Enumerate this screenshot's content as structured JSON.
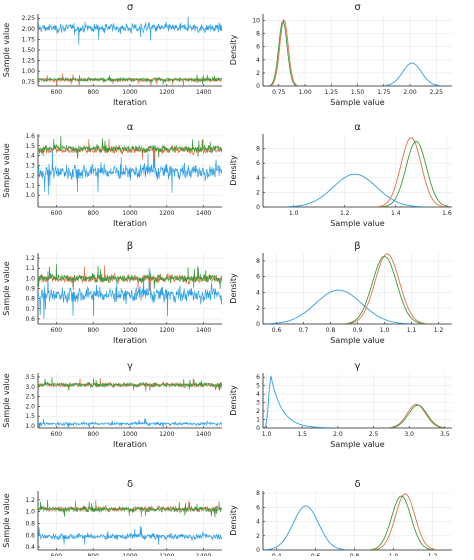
{
  "colors": {
    "chain1": "#2f9fe5",
    "chain2": "#e0704a",
    "chain3": "#3a9a3a",
    "grid": "#e8e8e8",
    "axis": "#222222"
  },
  "chart_data": [
    {
      "type": "line",
      "panel": "trace",
      "title": "σ",
      "xlabel": "Iteration",
      "ylabel": "Sample value",
      "xlim": [
        500,
        1500
      ],
      "ylim": [
        0.65,
        2.35
      ],
      "xticks": [
        600,
        800,
        1000,
        1200,
        1400
      ],
      "yticks": [
        0.75,
        1.0,
        1.25,
        1.5,
        1.75,
        2.0,
        2.25
      ],
      "ytick_labels": [
        "0.75",
        "1.00",
        "1.25",
        "1.50",
        "1.75",
        "2.00",
        "2.25"
      ],
      "series": [
        {
          "center": 2.02,
          "spread": 0.12
        },
        {
          "center": 0.8,
          "spread": 0.05
        },
        {
          "center": 0.8,
          "spread": 0.05
        }
      ]
    },
    {
      "type": "area",
      "panel": "density",
      "title": "σ",
      "xlabel": "Sample value",
      "ylabel": "Density",
      "xlim": [
        0.6,
        2.4
      ],
      "ylim": [
        0,
        11
      ],
      "xticks": [
        0.75,
        1.0,
        1.25,
        1.5,
        1.75,
        2.0,
        2.25
      ],
      "xtick_labels": [
        "0.75",
        "1.00",
        "1.25",
        "1.50",
        "1.75",
        "2.00",
        "2.25"
      ],
      "yticks": [
        0,
        2,
        4,
        6,
        8,
        10
      ],
      "series": [
        {
          "center": 2.02,
          "spread": 0.09,
          "peak": 3.5
        },
        {
          "center": 0.8,
          "spread": 0.04,
          "peak": 10.2
        },
        {
          "center": 0.79,
          "spread": 0.04,
          "peak": 10.0
        }
      ]
    },
    {
      "type": "line",
      "panel": "trace",
      "title": "α",
      "xlabel": "Iteration",
      "ylabel": "Sample value",
      "xlim": [
        500,
        1500
      ],
      "ylim": [
        0.88,
        1.62
      ],
      "xticks": [
        600,
        800,
        1000,
        1200,
        1400
      ],
      "yticks": [
        1.0,
        1.1,
        1.2,
        1.3,
        1.4,
        1.5,
        1.6
      ],
      "ytick_labels": [
        "1.0",
        "1.1",
        "1.2",
        "1.3",
        "1.4",
        "1.5",
        "1.6"
      ],
      "series": [
        {
          "center": 1.24,
          "spread": 0.09
        },
        {
          "center": 1.46,
          "spread": 0.04
        },
        {
          "center": 1.47,
          "spread": 0.04
        }
      ]
    },
    {
      "type": "area",
      "panel": "density",
      "title": "α",
      "xlabel": "Sample value",
      "ylabel": "Density",
      "xlim": [
        0.88,
        1.62
      ],
      "ylim": [
        0,
        10
      ],
      "xticks": [
        1.0,
        1.2,
        1.4,
        1.6
      ],
      "xtick_labels": [
        "1.0",
        "1.2",
        "1.4",
        "1.6"
      ],
      "yticks": [
        0,
        2,
        4,
        6,
        8
      ],
      "series": [
        {
          "center": 1.24,
          "spread": 0.085,
          "peak": 4.5
        },
        {
          "center": 1.46,
          "spread": 0.04,
          "peak": 9.5
        },
        {
          "center": 1.48,
          "spread": 0.04,
          "peak": 9.0
        }
      ]
    },
    {
      "type": "line",
      "panel": "trace",
      "title": "β",
      "xlabel": "Iteration",
      "ylabel": "Sample value",
      "xlim": [
        500,
        1500
      ],
      "ylim": [
        0.55,
        1.25
      ],
      "xticks": [
        600,
        800,
        1000,
        1200,
        1400
      ],
      "yticks": [
        0.6,
        0.7,
        0.8,
        0.9,
        1.0,
        1.1,
        1.2
      ],
      "ytick_labels": [
        "0.6",
        "0.7",
        "0.8",
        "0.9",
        "1.0",
        "1.1",
        "1.2"
      ],
      "series": [
        {
          "center": 0.84,
          "spread": 0.09
        },
        {
          "center": 1.0,
          "spread": 0.045
        },
        {
          "center": 1.0,
          "spread": 0.045
        }
      ]
    },
    {
      "type": "area",
      "panel": "density",
      "title": "β",
      "xlabel": "Sample value",
      "ylabel": "Density",
      "xlim": [
        0.55,
        1.25
      ],
      "ylim": [
        0,
        9
      ],
      "xticks": [
        0.6,
        0.7,
        0.8,
        0.9,
        1.0,
        1.1,
        1.2
      ],
      "xtick_labels": [
        "0.6",
        "0.7",
        "0.8",
        "0.9",
        "1.0",
        "1.1",
        "1.2"
      ],
      "yticks": [
        0,
        2,
        4,
        6,
        8
      ],
      "series": [
        {
          "center": 0.83,
          "spread": 0.085,
          "peak": 4.3
        },
        {
          "center": 1.01,
          "spread": 0.045,
          "peak": 8.9
        },
        {
          "center": 1.0,
          "spread": 0.045,
          "peak": 8.6
        }
      ]
    },
    {
      "type": "line",
      "panel": "trace",
      "title": "γ",
      "xlabel": "Iteration",
      "ylabel": "Sample value",
      "xlim": [
        500,
        1500
      ],
      "ylim": [
        0.9,
        3.7
      ],
      "xticks": [
        600,
        800,
        1000,
        1200,
        1400
      ],
      "yticks": [
        1.0,
        1.5,
        2.0,
        2.5,
        3.0,
        3.5
      ],
      "ytick_labels": [
        "1.0",
        "1.5",
        "2.0",
        "2.5",
        "3.0",
        "3.5"
      ],
      "series": [
        {
          "center": 1.12,
          "spread": 0.09
        },
        {
          "center": 3.1,
          "spread": 0.12
        },
        {
          "center": 3.1,
          "spread": 0.12
        }
      ]
    },
    {
      "type": "area",
      "panel": "density",
      "title": "γ",
      "xlabel": "Sample value",
      "ylabel": "Density",
      "xlim": [
        0.95,
        3.6
      ],
      "ylim": [
        0,
        6.5
      ],
      "xticks": [
        1.0,
        1.5,
        2.0,
        2.5,
        3.0,
        3.5
      ],
      "xtick_labels": [
        "1.0",
        "1.5",
        "2.0",
        "2.5",
        "3.0",
        "3.5"
      ],
      "yticks": [
        0,
        1,
        2,
        3,
        4,
        5,
        6
      ],
      "series": [
        {
          "center": 1.06,
          "spread": 0.07,
          "peak": 6.2,
          "skew": true
        },
        {
          "center": 3.1,
          "spread": 0.13,
          "peak": 2.8
        },
        {
          "center": 3.12,
          "spread": 0.13,
          "peak": 2.7
        }
      ]
    },
    {
      "type": "line",
      "panel": "trace",
      "title": "δ",
      "xlabel": "Iteration",
      "ylabel": "Sample value",
      "xlim": [
        500,
        1500
      ],
      "ylim": [
        0.35,
        1.35
      ],
      "xticks": [
        600,
        800,
        1000,
        1200,
        1400
      ],
      "yticks": [
        0.4,
        0.6,
        0.8,
        1.0,
        1.2
      ],
      "ytick_labels": [
        "0.4",
        "0.6",
        "0.8",
        "1.0",
        "1.2"
      ],
      "series": [
        {
          "center": 0.58,
          "spread": 0.06
        },
        {
          "center": 1.05,
          "spread": 0.05
        },
        {
          "center": 1.04,
          "spread": 0.05
        }
      ]
    },
    {
      "type": "area",
      "panel": "density",
      "title": "δ",
      "xlabel": "Sample value",
      "ylabel": "Density",
      "xlim": [
        0.33,
        1.3
      ],
      "ylim": [
        0,
        8.3
      ],
      "xticks": [
        0.4,
        0.6,
        0.8,
        1.0,
        1.2
      ],
      "xtick_labels": [
        "0.4",
        "0.6",
        "0.8",
        "1.0",
        "1.2"
      ],
      "yticks": [
        0,
        2,
        4,
        6,
        8
      ],
      "series": [
        {
          "center": 0.55,
          "spread": 0.065,
          "peak": 6.2
        },
        {
          "center": 1.06,
          "spread": 0.05,
          "peak": 7.9
        },
        {
          "center": 1.04,
          "spread": 0.05,
          "peak": 7.6
        }
      ]
    }
  ]
}
